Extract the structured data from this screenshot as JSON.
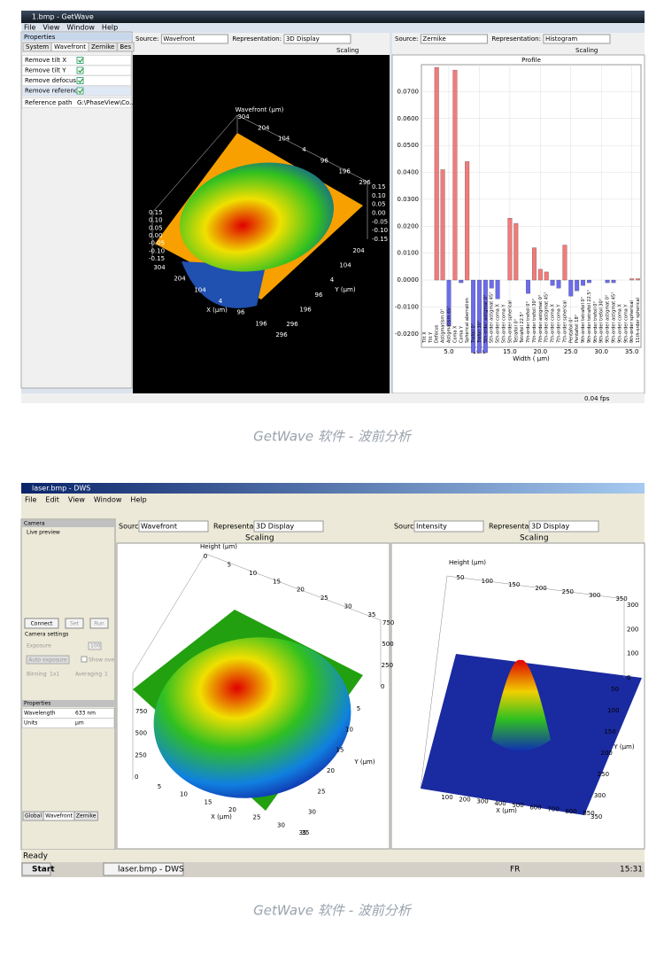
{
  "captions": [
    "GetWave 软件 - 波前分析",
    "GetWave 软件 - 波前分析"
  ],
  "w1": {
    "title": "1.bmp - GetWave",
    "menu": [
      "File",
      "View",
      "Window",
      "Help"
    ],
    "panel_title": "Properties",
    "tabs": [
      "System",
      "Wavefront",
      "Zernike",
      "Bes"
    ],
    "props": [
      {
        "label": "Remove tilt X",
        "checked": true
      },
      {
        "label": "Remove tilt Y",
        "checked": true
      },
      {
        "label": "Remove defocus",
        "checked": true
      },
      {
        "label": "Remove reference",
        "checked": true
      }
    ],
    "ref": {
      "label": "Reference path",
      "value": "G:\\PhaseView\\Co..."
    },
    "left": {
      "source_label": "Source:",
      "source": "Wavefront",
      "rep_label": "Representation:",
      "rep": "3D Display",
      "scaling": "Scaling",
      "plot": {
        "z_title": "Wavefront (µm)",
        "x_title": "X (µm)",
        "y_title": "Y (µm)",
        "top_ticks": [
          "304",
          "204",
          "104",
          "4",
          "96",
          "196",
          "296"
        ],
        "z_ticks": [
          "0.15",
          "0.10",
          "0.05",
          "0.00",
          "-0.05",
          "-0.10",
          "-0.15"
        ],
        "x_ticks": [
          "304",
          "204",
          "104",
          "4",
          "96",
          "196",
          "296"
        ],
        "y_ticks": [
          "204",
          "104",
          "4",
          "96",
          "196",
          "296"
        ]
      }
    },
    "right": {
      "source_label": "Source:",
      "source": "Zernike",
      "rep_label": "Representation:",
      "rep": "Histogram",
      "scaling": "Scaling",
      "chart": {
        "type": "bar",
        "title": "Profile",
        "xlabel": "Width ( µm)",
        "categories": [
          "Tilt X",
          "Tilt Y",
          "Defocus",
          "Astigmatism 0°",
          "Astigmatism 45°",
          "Coma X",
          "Coma Y",
          "Spherical aberration",
          "Trefoil 0°",
          "Trefoil 30°",
          "5th-order astigmat 0°",
          "5th-order astigmat 45°",
          "5th-order coma X",
          "5th-order coma Y",
          "5th-order spherical",
          "Tetrafoil 0°",
          "Tetrafoil 22.5°",
          "7th-order trefoil 0°",
          "7th-order trefoil 30°",
          "7th-order astigmat 0°",
          "7th-order astigmat 45°",
          "7th-order coma X",
          "7th-order coma Y",
          "7th-order spherical",
          "Pentafoil 0°",
          "Pentafoil 18°",
          "9th-order tetrafoil 0°",
          "9th-order tetrafoil 22.5°",
          "9th-order trefoil 0°",
          "9th-order trefoil 30°",
          "9th-order astigmat 0°",
          "9th-order astigmat 45°",
          "9th-order coma X",
          "9th-order coma Y",
          "9th-order spherical",
          "11th-order spherical"
        ],
        "x": [
          1,
          2,
          3,
          4,
          5,
          6,
          7,
          8,
          9,
          10,
          11,
          12,
          13,
          14,
          15,
          16,
          17,
          18,
          19,
          20,
          21,
          22,
          23,
          24,
          25,
          26,
          27,
          28,
          29,
          30,
          31,
          32,
          33,
          34,
          35,
          36
        ],
        "values": [
          0,
          0,
          0.079,
          0.041,
          -0.017,
          0.078,
          -0.001,
          0.044,
          -0.027,
          -0.027,
          -0.027,
          -0.003,
          -0.007,
          0,
          0.023,
          0.021,
          0,
          -0.005,
          0.012,
          0.004,
          0.003,
          -0.002,
          -0.003,
          0.013,
          -0.006,
          -0.004,
          -0.002,
          -0.001,
          0,
          0,
          -0.001,
          -0.001,
          0,
          0,
          0.0005,
          0.0005
        ],
        "colors": {
          "positive": "#f47a7a",
          "negative": "#6b6bf0"
        },
        "xlim": [
          0.5,
          36.5
        ],
        "xticks": [
          {
            "value": 5,
            "label": "5.0"
          },
          {
            "value": 10,
            "label": "10.0"
          },
          {
            "value": 15,
            "label": "15.0"
          },
          {
            "value": 20,
            "label": "20.0"
          },
          {
            "value": 25,
            "label": "25.0"
          },
          {
            "value": 30,
            "label": "30.0"
          },
          {
            "value": 35,
            "label": "35.0"
          }
        ],
        "ylim": [
          -0.025,
          0.08
        ],
        "yticks": [
          {
            "value": -0.02,
            "label": "-0.0200"
          },
          {
            "value": -0.01,
            "label": "-0.0100"
          },
          {
            "value": 0,
            "label": "0.0000"
          },
          {
            "value": 0.01,
            "label": "0.0100"
          },
          {
            "value": 0.02,
            "label": "0.0200"
          },
          {
            "value": 0.03,
            "label": "0.0300"
          },
          {
            "value": 0.04,
            "label": "0.0400"
          },
          {
            "value": 0.05,
            "label": "0.0500"
          },
          {
            "value": 0.06,
            "label": "0.0600"
          },
          {
            "value": 0.07,
            "label": "0.0700"
          }
        ],
        "grid": true
      }
    },
    "status": "0.04 fps"
  },
  "w2": {
    "title": "laser.bmp - DWS",
    "menu": [
      "File",
      "Edit",
      "View",
      "Window",
      "Help"
    ],
    "camera": {
      "title": "Camera",
      "preview": "Live preview",
      "buttons": [
        "Connect",
        "Set",
        "Run"
      ],
      "settings": "Camera settings",
      "exposure": "Exposure",
      "exposure_value": "100",
      "show": "Show ove",
      "auto": "Auto exposure",
      "binning": "Binning",
      "binning_value": "1x1",
      "averaging": "Averaging",
      "averaging_value": "1"
    },
    "properties": {
      "title": "Properties",
      "rows": [
        [
          "Wavelength",
          "633 nm"
        ],
        [
          "Units",
          "µm"
        ]
      ]
    },
    "tabs": [
      "Global",
      "Wavefront",
      "Zernike"
    ],
    "left": {
      "source_label": "Sourc",
      "source": "Wavefront",
      "rep_label": "Representa",
      "rep": "3D Display",
      "scaling": "Scaling",
      "plot": {
        "z_title": "Height (µm)",
        "x_title": "X (µm)",
        "y_title": "Y (µm)",
        "top_ticks": [
          "0",
          "5",
          "10",
          "15",
          "20",
          "25",
          "30",
          "35"
        ],
        "z_ticks": [
          "750",
          "500",
          "250",
          "0"
        ],
        "x_ticks": [
          "5",
          "10",
          "15",
          "20",
          "25",
          "30",
          "35"
        ],
        "y_ticks": [
          "5",
          "10",
          "15",
          "20",
          "25",
          "30",
          "35"
        ]
      }
    },
    "right": {
      "source_label": "Sourc",
      "source": "Intensity",
      "rep_label": "Representa",
      "rep": "3D Display",
      "scaling": "Scaling",
      "plot": {
        "z_title": "Height (µm)",
        "x_title": "X (µm)",
        "y_title": "Y (µm)",
        "top_ticks": [
          "50",
          "100",
          "150",
          "200",
          "250",
          "300",
          "350"
        ],
        "z_ticks": [
          "300",
          "200",
          "100",
          "0"
        ],
        "x_ticks": [
          "100",
          "200",
          "300",
          "400",
          "500",
          "600",
          "700",
          "800",
          "850"
        ],
        "y_ticks": [
          "50",
          "100",
          "150",
          "200",
          "250",
          "300",
          "350"
        ]
      }
    },
    "status": "Ready",
    "taskbar": {
      "start": "Start",
      "task": "laser.bmp - DWS",
      "lang": "FR",
      "clock": "15:31"
    }
  }
}
